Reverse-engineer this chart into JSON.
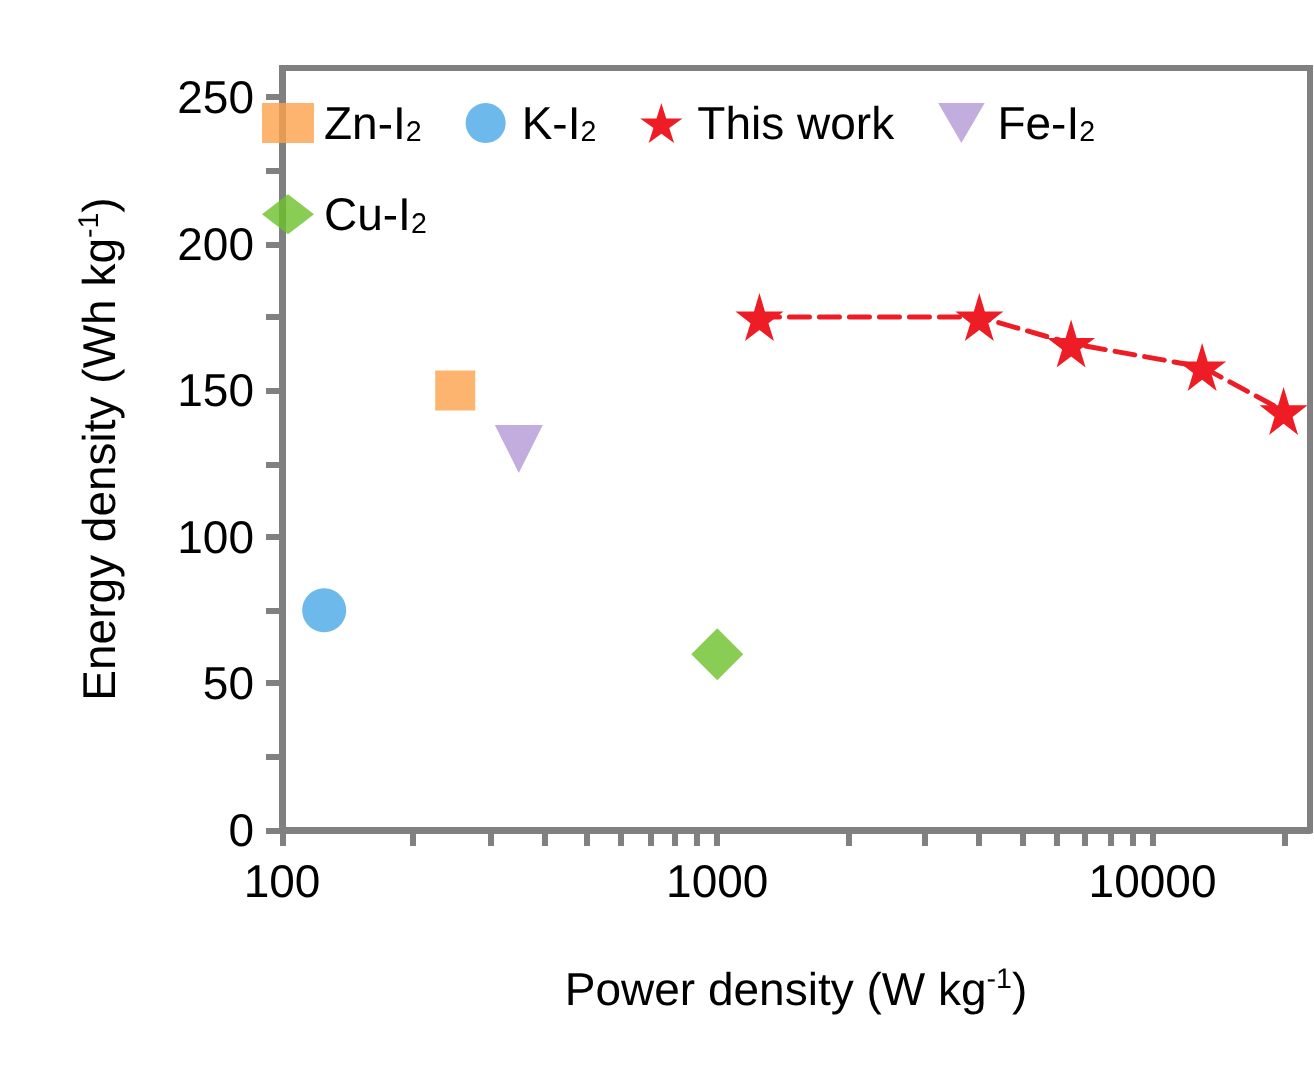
{
  "chart_data": {
    "type": "scatter",
    "xlabel": "Power density (W kg$^{-1}$)",
    "ylabel": "Energy density (Wh kg$^{-1}$)",
    "log": "x",
    "xlim": [
      100,
      23000
    ],
    "xticks": [
      100,
      {
        "value": 200,
        "label": null
      },
      {
        "value": 300,
        "label": null
      },
      {
        "value": 400,
        "label": null
      },
      {
        "value": 500,
        "label": null
      },
      {
        "value": 600,
        "label": null
      },
      {
        "value": 700,
        "label": null
      },
      {
        "value": 800,
        "label": null
      },
      {
        "value": 900,
        "label": null
      },
      1000,
      {
        "value": 2000,
        "label": null
      },
      {
        "value": 3000,
        "label": null
      },
      {
        "value": 4000,
        "label": null
      },
      {
        "value": 5000,
        "label": null
      },
      {
        "value": 6000,
        "label": null
      },
      {
        "value": 7000,
        "label": null
      },
      {
        "value": 8000,
        "label": null
      },
      {
        "value": 9000,
        "label": null
      },
      10000,
      {
        "value": 20000,
        "label": null
      }
    ],
    "ylim": [
      0,
      260
    ],
    "yticks": [
      0,
      {
        "value": 25,
        "label": null
      },
      50,
      {
        "value": 75,
        "label": null
      },
      100,
      {
        "value": 125,
        "label": null
      },
      150,
      {
        "value": 175,
        "label": null
      },
      200,
      {
        "value": 225,
        "label": null
      },
      250
    ],
    "grid": false,
    "legend": "top left",
    "series": [
      {
        "name": "Zn-I$_{2}$",
        "marker": "square",
        "color": "#fba14b",
        "x": [
          250
        ],
        "values": [
          150
        ]
      },
      {
        "name": "K-I$_{2}$",
        "marker": "circle",
        "color": "#4aa8e6",
        "x": [
          125
        ],
        "values": [
          75
        ]
      },
      {
        "name": "This work",
        "type": "line",
        "marker": "star",
        "line_style": "dashed",
        "color": "#ee1c25",
        "x": [
          1250,
          4000,
          6500,
          13000,
          20000
        ],
        "values": [
          175,
          175,
          166,
          158,
          143
        ]
      },
      {
        "name": "Fe-I$_{2}$",
        "marker": "triangle",
        "color": "#b497d6",
        "x": [
          350
        ],
        "values": [
          130
        ]
      },
      {
        "name": "Cu-I$_{2}$",
        "marker": "diamond",
        "color": "#6cc12a",
        "x": [
          1000
        ],
        "values": [
          60
        ]
      }
    ]
  }
}
